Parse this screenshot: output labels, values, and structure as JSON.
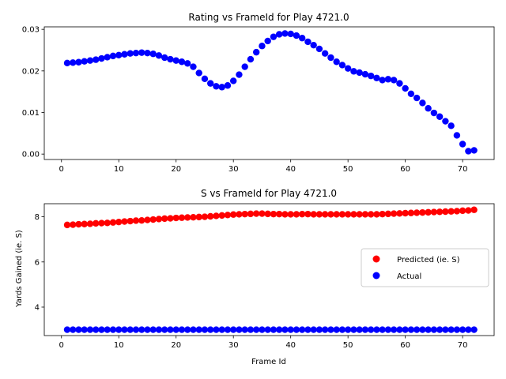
{
  "chart_data": [
    {
      "type": "scatter",
      "title": "Rating vs FrameId for Play 4721.0",
      "xlabel": "",
      "ylabel": "",
      "xlim": [
        -3,
        75.5
      ],
      "ylim": [
        -0.0013,
        0.0306
      ],
      "xticks": [
        0,
        10,
        20,
        30,
        40,
        50,
        60,
        70
      ],
      "yticks": [
        0.0,
        0.01,
        0.02,
        0.03
      ],
      "ytick_labels": [
        "0.00",
        "0.01",
        "0.02",
        "0.03"
      ],
      "grid": false,
      "series": [
        {
          "color": "#0000ff",
          "x": [
            1,
            2,
            3,
            4,
            5,
            6,
            7,
            8,
            9,
            10,
            11,
            12,
            13,
            14,
            15,
            16,
            17,
            18,
            19,
            20,
            21,
            22,
            23,
            24,
            25,
            26,
            27,
            28,
            29,
            30,
            31,
            32,
            33,
            34,
            35,
            36,
            37,
            38,
            39,
            40,
            41,
            42,
            43,
            44,
            45,
            46,
            47,
            48,
            49,
            50,
            51,
            52,
            53,
            54,
            55,
            56,
            57,
            58,
            59,
            60,
            61,
            62,
            63,
            64,
            65,
            66,
            67,
            68,
            69,
            70,
            71,
            72
          ],
          "y": [
            0.0219,
            0.022,
            0.0221,
            0.0223,
            0.0225,
            0.0227,
            0.023,
            0.0233,
            0.0236,
            0.0238,
            0.024,
            0.0242,
            0.0243,
            0.0244,
            0.0243,
            0.0241,
            0.0237,
            0.0232,
            0.0228,
            0.0225,
            0.0222,
            0.0218,
            0.021,
            0.0195,
            0.0181,
            0.017,
            0.0163,
            0.0161,
            0.0165,
            0.0176,
            0.0191,
            0.021,
            0.0228,
            0.0245,
            0.026,
            0.0272,
            0.0282,
            0.0288,
            0.029,
            0.0289,
            0.0285,
            0.0279,
            0.027,
            0.0262,
            0.0253,
            0.0242,
            0.0232,
            0.0222,
            0.0214,
            0.0206,
            0.0199,
            0.0196,
            0.0192,
            0.0188,
            0.0183,
            0.0178,
            0.018,
            0.0178,
            0.017,
            0.0158,
            0.0145,
            0.0135,
            0.0123,
            0.011,
            0.0099,
            0.009,
            0.0079,
            0.0068,
            0.0045,
            0.0024,
            0.0007,
            0.0009
          ]
        }
      ]
    },
    {
      "type": "scatter",
      "title": "S vs FrameId for Play 4721.0",
      "xlabel": "Frame Id",
      "ylabel": "Yards Gained (ie. S)",
      "xlim": [
        -3,
        75.5
      ],
      "ylim": [
        2.74,
        8.58
      ],
      "xticks": [
        0,
        10,
        20,
        30,
        40,
        50,
        60,
        70
      ],
      "yticks": [
        4,
        6,
        8
      ],
      "ytick_labels": [
        "4",
        "6",
        "8"
      ],
      "grid": false,
      "legend_position": "center-right",
      "series": [
        {
          "name": "Predicted (ie. S)",
          "color": "#ff0000",
          "x": [
            1,
            2,
            3,
            4,
            5,
            6,
            7,
            8,
            9,
            10,
            11,
            12,
            13,
            14,
            15,
            16,
            17,
            18,
            19,
            20,
            21,
            22,
            23,
            24,
            25,
            26,
            27,
            28,
            29,
            30,
            31,
            32,
            33,
            34,
            35,
            36,
            37,
            38,
            39,
            40,
            41,
            42,
            43,
            44,
            45,
            46,
            47,
            48,
            49,
            50,
            51,
            52,
            53,
            54,
            55,
            56,
            57,
            58,
            59,
            60,
            61,
            62,
            63,
            64,
            65,
            66,
            67,
            68,
            69,
            70,
            71,
            72
          ],
          "y": [
            7.64,
            7.65,
            7.67,
            7.68,
            7.69,
            7.71,
            7.72,
            7.73,
            7.75,
            7.77,
            7.79,
            7.81,
            7.83,
            7.84,
            7.86,
            7.88,
            7.9,
            7.92,
            7.93,
            7.95,
            7.96,
            7.97,
            7.98,
            7.99,
            8.0,
            8.02,
            8.04,
            8.06,
            8.08,
            8.1,
            8.11,
            8.12,
            8.13,
            8.14,
            8.14,
            8.13,
            8.12,
            8.12,
            8.11,
            8.11,
            8.11,
            8.12,
            8.12,
            8.11,
            8.11,
            8.11,
            8.11,
            8.11,
            8.11,
            8.11,
            8.11,
            8.11,
            8.11,
            8.11,
            8.11,
            8.12,
            8.13,
            8.14,
            8.15,
            8.16,
            8.17,
            8.18,
            8.19,
            8.2,
            8.21,
            8.22,
            8.23,
            8.24,
            8.25,
            8.27,
            8.28,
            8.31
          ]
        },
        {
          "name": "Actual",
          "color": "#0000ff",
          "x": [
            1,
            2,
            3,
            4,
            5,
            6,
            7,
            8,
            9,
            10,
            11,
            12,
            13,
            14,
            15,
            16,
            17,
            18,
            19,
            20,
            21,
            22,
            23,
            24,
            25,
            26,
            27,
            28,
            29,
            30,
            31,
            32,
            33,
            34,
            35,
            36,
            37,
            38,
            39,
            40,
            41,
            42,
            43,
            44,
            45,
            46,
            47,
            48,
            49,
            50,
            51,
            52,
            53,
            54,
            55,
            56,
            57,
            58,
            59,
            60,
            61,
            62,
            63,
            64,
            65,
            66,
            67,
            68,
            69,
            70,
            71,
            72
          ],
          "y": [
            3.0,
            3.0,
            3.0,
            3.0,
            3.0,
            3.0,
            3.0,
            3.0,
            3.0,
            3.0,
            3.0,
            3.0,
            3.0,
            3.0,
            3.0,
            3.0,
            3.0,
            3.0,
            3.0,
            3.0,
            3.0,
            3.0,
            3.0,
            3.0,
            3.0,
            3.0,
            3.0,
            3.0,
            3.0,
            3.0,
            3.0,
            3.0,
            3.0,
            3.0,
            3.0,
            3.0,
            3.0,
            3.0,
            3.0,
            3.0,
            3.0,
            3.0,
            3.0,
            3.0,
            3.0,
            3.0,
            3.0,
            3.0,
            3.0,
            3.0,
            3.0,
            3.0,
            3.0,
            3.0,
            3.0,
            3.0,
            3.0,
            3.0,
            3.0,
            3.0,
            3.0,
            3.0,
            3.0,
            3.0,
            3.0,
            3.0,
            3.0,
            3.0,
            3.0,
            3.0,
            3.0,
            3.0
          ]
        }
      ]
    }
  ]
}
